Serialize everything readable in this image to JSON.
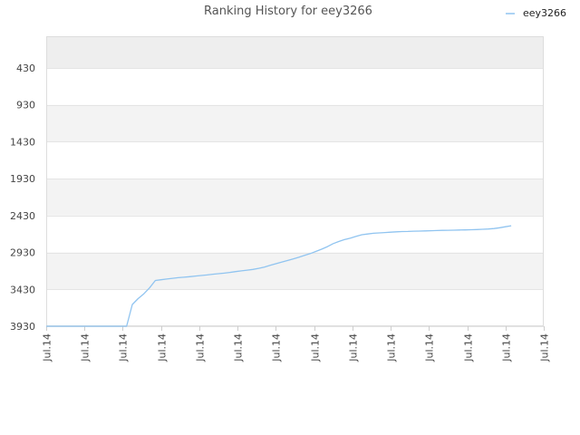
{
  "chart_data": {
    "type": "line",
    "title": "Ranking History for eey3266",
    "xlabel": "",
    "ylabel": "",
    "y_reversed": true,
    "ylim": [
      3930,
      0
    ],
    "y_ticks": [
      430,
      930,
      1430,
      1930,
      2430,
      2930,
      3430,
      3930
    ],
    "x_tick_labels": [
      "Jul.14",
      "Jul.14",
      "Jul.14",
      "Jul.14",
      "Jul.14",
      "Jul.14",
      "Jul.14",
      "Jul.14",
      "Jul.14",
      "Jul.14",
      "Jul.14",
      "Jul.14",
      "Jul.14",
      "Jul.14"
    ],
    "grid": true,
    "legend_position": "top-right",
    "series": [
      {
        "name": "eey3266",
        "color": "#90c4f0",
        "x": [
          0,
          0.15,
          0.3,
          0.45,
          0.6,
          0.75,
          0.9,
          1.05,
          1.2,
          1.35,
          1.5,
          1.65,
          1.8,
          1.95,
          2.1,
          2.25,
          2.4,
          2.55,
          2.7,
          2.85,
          3.0,
          3.15,
          3.3,
          3.45,
          3.6,
          3.75,
          3.9,
          4.05,
          4.2,
          4.35,
          4.5,
          4.65,
          4.8,
          4.95,
          5.1,
          5.25,
          5.4,
          5.55,
          5.7,
          5.85,
          6.0,
          6.15,
          6.3,
          6.45,
          6.6,
          6.75,
          6.9,
          7.05,
          7.2,
          7.35,
          7.5,
          7.65,
          7.8,
          7.95,
          8.1,
          8.25,
          8.4,
          8.55,
          8.7,
          8.85,
          9.0,
          9.15,
          9.3,
          9.45,
          9.6,
          9.75,
          9.9,
          10.05,
          10.2,
          10.35,
          10.5,
          10.65,
          10.8,
          10.95,
          11.1,
          11.25,
          11.4,
          11.55,
          11.7,
          11.85,
          12.0,
          12.15
        ],
        "values": [
          3930,
          3930,
          3930,
          3930,
          3930,
          3930,
          3930,
          3930,
          3930,
          3930,
          3930,
          3930,
          3930,
          3930,
          3930,
          3635,
          3555,
          3490,
          3410,
          3310,
          3300,
          3290,
          3280,
          3272,
          3265,
          3258,
          3250,
          3242,
          3235,
          3225,
          3218,
          3210,
          3200,
          3190,
          3180,
          3170,
          3160,
          3145,
          3128,
          3105,
          3083,
          3062,
          3040,
          3018,
          2995,
          2970,
          2945,
          2915,
          2885,
          2850,
          2810,
          2780,
          2755,
          2735,
          2710,
          2690,
          2680,
          2670,
          2665,
          2660,
          2655,
          2650,
          2647,
          2645,
          2642,
          2640,
          2638,
          2636,
          2633,
          2631,
          2630,
          2628,
          2626,
          2624,
          2622,
          2620,
          2616,
          2612,
          2606,
          2595,
          2582,
          2568
        ]
      }
    ]
  }
}
